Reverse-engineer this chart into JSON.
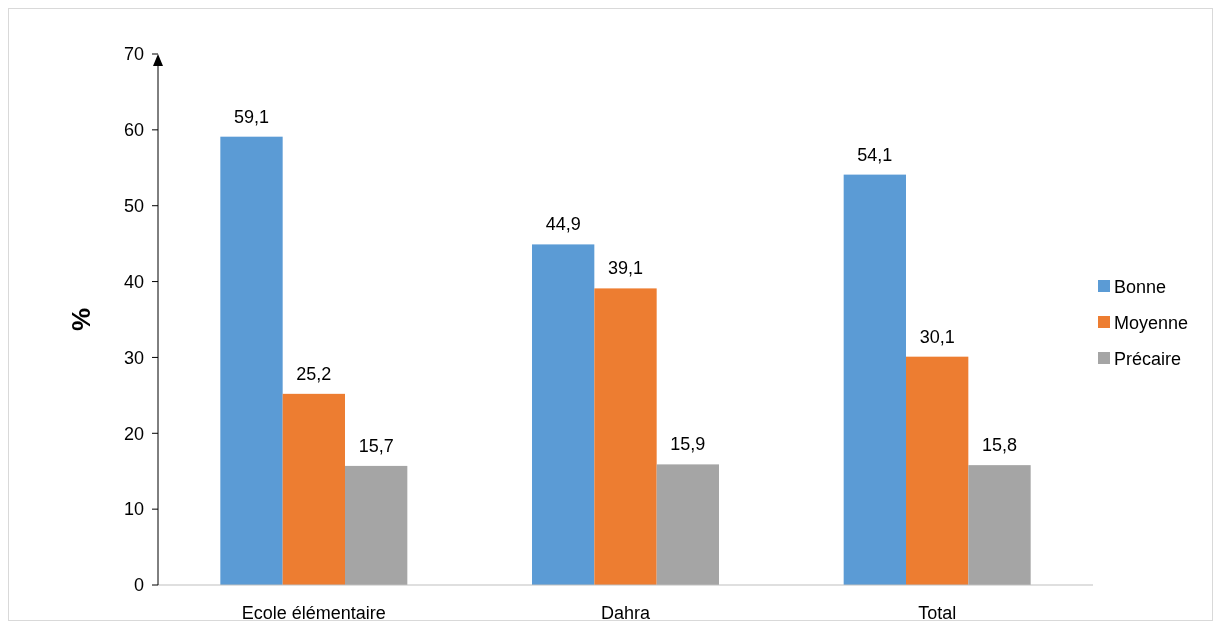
{
  "chart_data": {
    "type": "bar",
    "ylabel": "%",
    "categories": [
      "Ecole élémentaire",
      "Dahra",
      "Total"
    ],
    "series": [
      {
        "name": "Bonne",
        "color": "#5b9bd5",
        "values": [
          59.1,
          44.9,
          54.1
        ],
        "value_labels": [
          "59,1",
          "44,9",
          "54,1"
        ]
      },
      {
        "name": "Moyenne",
        "color": "#ed7d31",
        "values": [
          25.2,
          39.1,
          30.1
        ],
        "value_labels": [
          "25,2",
          "39,1",
          "30,1"
        ]
      },
      {
        "name": "Précaire",
        "color": "#a5a5a5",
        "values": [
          15.7,
          15.9,
          15.8
        ],
        "value_labels": [
          "15,7",
          "15,9",
          "15,8"
        ]
      }
    ],
    "ylim": [
      0,
      70
    ],
    "yticks": [
      0,
      10,
      20,
      30,
      40,
      50,
      60,
      70
    ],
    "grid": false,
    "legend": "right"
  }
}
